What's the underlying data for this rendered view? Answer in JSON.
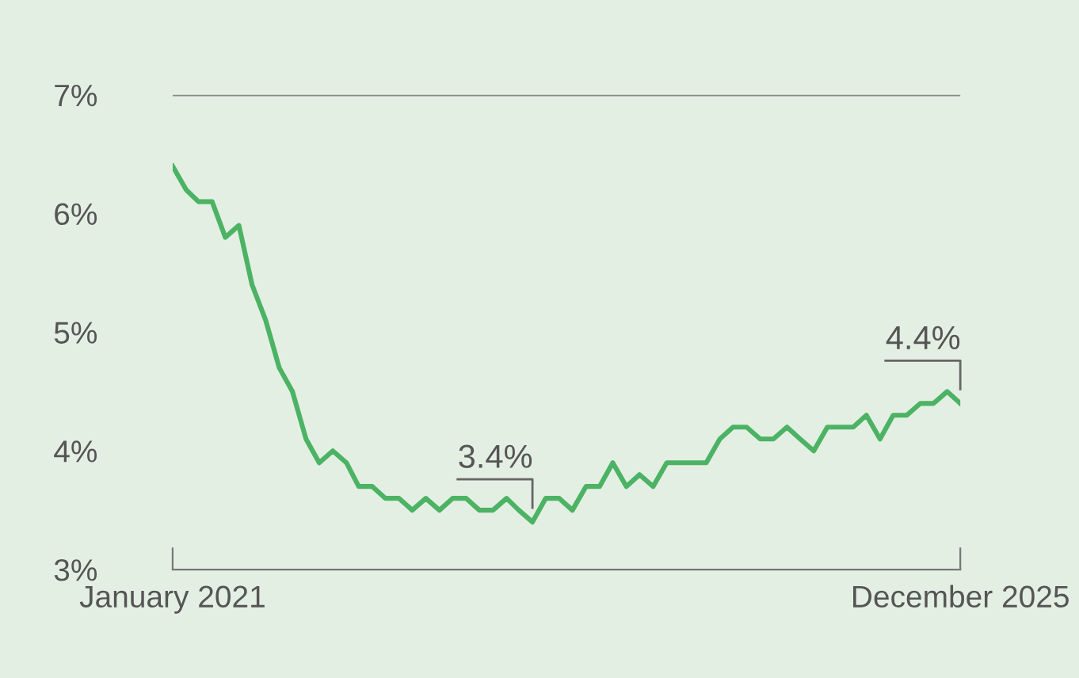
{
  "chart_data": {
    "type": "line",
    "x": [
      "2021-01",
      "2021-02",
      "2021-03",
      "2021-04",
      "2021-05",
      "2021-06",
      "2021-07",
      "2021-08",
      "2021-09",
      "2021-10",
      "2021-11",
      "2021-12",
      "2022-01",
      "2022-02",
      "2022-03",
      "2022-04",
      "2022-05",
      "2022-06",
      "2022-07",
      "2022-08",
      "2022-09",
      "2022-10",
      "2022-11",
      "2022-12",
      "2023-01",
      "2023-02",
      "2023-03",
      "2023-04",
      "2023-05",
      "2023-06",
      "2023-07",
      "2023-08",
      "2023-09",
      "2023-10",
      "2023-11",
      "2023-12",
      "2024-01",
      "2024-02",
      "2024-03",
      "2024-04",
      "2024-05",
      "2024-06",
      "2024-07",
      "2024-08",
      "2024-09",
      "2024-10",
      "2024-11",
      "2024-12",
      "2025-01",
      "2025-02",
      "2025-03",
      "2025-04",
      "2025-05",
      "2025-06",
      "2025-07",
      "2025-08",
      "2025-09",
      "2025-10",
      "2025-11",
      "2025-12"
    ],
    "series": [
      {
        "color": "#4cb365",
        "values": [
          6.4,
          6.2,
          6.1,
          6.1,
          5.8,
          5.9,
          5.4,
          5.1,
          4.7,
          4.5,
          4.1,
          3.9,
          4.0,
          3.9,
          3.7,
          3.7,
          3.6,
          3.6,
          3.5,
          3.6,
          3.5,
          3.6,
          3.6,
          3.5,
          3.5,
          3.6,
          3.5,
          3.4,
          3.6,
          3.6,
          3.5,
          3.7,
          3.7,
          3.9,
          3.7,
          3.8,
          3.7,
          3.9,
          3.9,
          3.9,
          3.9,
          4.1,
          4.2,
          4.2,
          4.1,
          4.1,
          4.2,
          4.1,
          4.0,
          4.2,
          4.2,
          4.2,
          4.3,
          4.1,
          4.3,
          4.3,
          4.4,
          4.4,
          4.5,
          4.4
        ]
      }
    ],
    "xlim": [
      "2021-01",
      "2025-12"
    ],
    "xticks": [
      {
        "value": "2021-01",
        "label": "January 2021"
      },
      {
        "value": "2025-12",
        "label": "December 2025"
      }
    ],
    "ylim": [
      3,
      7
    ],
    "yticks": [
      {
        "value": 3,
        "label": "3%"
      },
      {
        "value": 4,
        "label": "4%"
      },
      {
        "value": 5,
        "label": "5%"
      },
      {
        "value": 6,
        "label": "6%"
      },
      {
        "value": 7,
        "label": "7%"
      }
    ],
    "ref_lines": [
      {
        "axis": "y",
        "value": 7,
        "color": "#8a8a8a"
      }
    ],
    "annotations": [
      {
        "text": "3.4%",
        "x": "2023-04",
        "y": 3.4
      },
      {
        "text": "4.4%",
        "x": "2025-12",
        "y": 4.4
      }
    ],
    "grid": false,
    "marker": "none",
    "line_style": "solid"
  }
}
